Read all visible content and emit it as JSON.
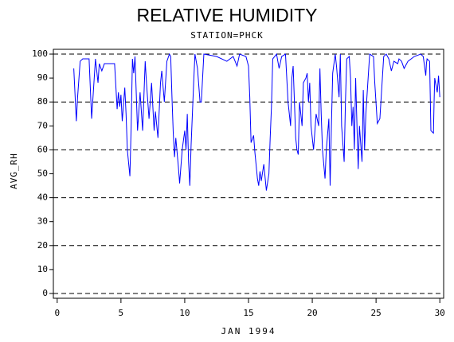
{
  "chart_data": {
    "type": "line",
    "title": "RELATIVE HUMIDITY",
    "subtitle": "STATION=PHCK",
    "y_label": "AVG_RH",
    "x_label": "JAN 1994",
    "color": "#0000ff",
    "xlim": [
      -0.3,
      30.3
    ],
    "xticks": [
      0,
      5,
      10,
      15,
      20,
      25,
      30
    ],
    "ylim": [
      -2,
      102
    ],
    "yticks": [
      0,
      10,
      20,
      30,
      40,
      50,
      60,
      70,
      80,
      90,
      100
    ],
    "grid_values": [
      0,
      20,
      40,
      60,
      80,
      100
    ],
    "x": [
      1.3,
      1.5,
      1.6,
      1.8,
      2.0,
      2.5,
      2.7,
      3.0,
      3.2,
      3.3,
      3.5,
      3.7,
      4.0,
      4.5,
      4.7,
      4.8,
      4.9,
      5.0,
      5.1,
      5.3,
      5.4,
      5.5,
      5.7,
      5.8,
      5.9,
      6.0,
      6.1,
      6.3,
      6.5,
      6.7,
      6.9,
      7.0,
      7.2,
      7.4,
      7.6,
      7.7,
      7.9,
      8.1,
      8.2,
      8.4,
      8.6,
      8.8,
      8.9,
      9.0,
      9.1,
      9.2,
      9.3,
      9.5,
      9.6,
      9.8,
      10.0,
      10.1,
      10.2,
      10.3,
      10.4,
      10.5,
      10.7,
      10.8,
      11.0,
      11.2,
      11.3,
      11.5,
      12.5,
      13.3,
      13.8,
      14.1,
      14.3,
      14.8,
      15.0,
      15.1,
      15.2,
      15.4,
      15.5,
      15.7,
      15.8,
      15.9,
      16.0,
      16.2,
      16.4,
      16.6,
      16.7,
      16.8,
      16.9,
      17.2,
      17.4,
      17.6,
      17.9,
      18.1,
      18.3,
      18.4,
      18.5,
      18.7,
      18.8,
      18.9,
      19.0,
      19.2,
      19.3,
      19.5,
      19.6,
      19.7,
      19.8,
      19.9,
      20.1,
      20.3,
      20.5,
      20.6,
      20.7,
      20.8,
      21.0,
      21.1,
      21.3,
      21.4,
      21.5,
      21.6,
      21.8,
      21.9,
      22.1,
      22.2,
      22.3,
      22.5,
      22.6,
      22.7,
      22.9,
      23.0,
      23.1,
      23.2,
      23.3,
      23.4,
      23.6,
      23.7,
      23.9,
      24.0,
      24.1,
      24.2,
      24.5,
      24.8,
      24.9,
      25.1,
      25.3,
      25.6,
      25.8,
      26.0,
      26.2,
      26.4,
      26.7,
      26.8,
      27.0,
      27.2,
      27.5,
      28.0,
      28.5,
      28.7,
      28.9,
      28.95,
      29.0,
      29.2,
      29.3,
      29.5,
      29.55,
      29.6,
      29.8,
      29.9,
      30.0
    ],
    "values": [
      94,
      72,
      82,
      97,
      98,
      98,
      73,
      98,
      88,
      96,
      93,
      96,
      96,
      96,
      77,
      84,
      78,
      83,
      72,
      86,
      75,
      60,
      49,
      70,
      98,
      92,
      99,
      68,
      84,
      68,
      97,
      88,
      73,
      88,
      68,
      76,
      65,
      88,
      93,
      80,
      97,
      100,
      99,
      82,
      67,
      57,
      65,
      53,
      46,
      60,
      68,
      60,
      75,
      55,
      45,
      62,
      88,
      100,
      94,
      80,
      80,
      100,
      99,
      97,
      99,
      95,
      100,
      99,
      95,
      82,
      63,
      66,
      59,
      48,
      45,
      51,
      47,
      54,
      43,
      50,
      65,
      78,
      98,
      100,
      94,
      99,
      100,
      80,
      70,
      90,
      95,
      65,
      60,
      58,
      80,
      70,
      88,
      90,
      92,
      80,
      88,
      70,
      60,
      75,
      70,
      94,
      75,
      60,
      48,
      60,
      73,
      45,
      70,
      92,
      100,
      95,
      82,
      100,
      70,
      55,
      80,
      98,
      99,
      90,
      70,
      78,
      60,
      90,
      52,
      70,
      55,
      85,
      60,
      75,
      100,
      99,
      88,
      71,
      73,
      99,
      100,
      98,
      93,
      97,
      96,
      98,
      97,
      94,
      97,
      99,
      100,
      99,
      91,
      96,
      98,
      97,
      68,
      67,
      80,
      90,
      84,
      91,
      82
    ]
  }
}
